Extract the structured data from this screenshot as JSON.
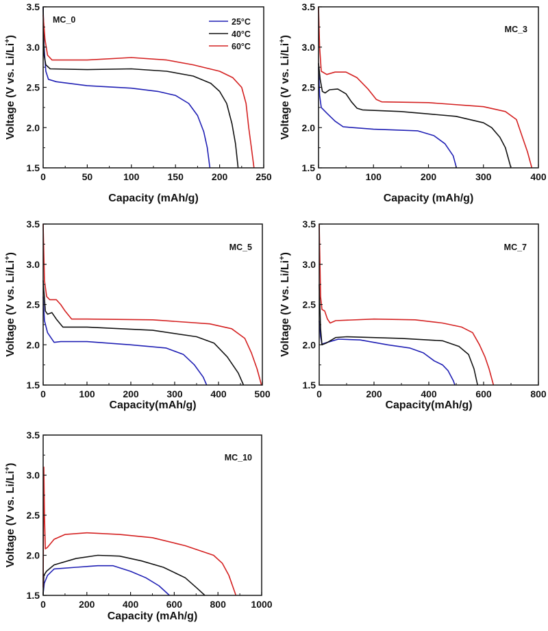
{
  "chart_data": [
    {
      "type": "line",
      "panel_label": "MC_0",
      "xlabel": "Capacity (mAh/g)",
      "ylabel": "Voltage (V vs. Li/Li+)",
      "xlim": [
        0,
        250
      ],
      "ylim": [
        1.5,
        3.5
      ],
      "x_ticks": [
        "0",
        "50",
        "100",
        "150",
        "200",
        "250"
      ],
      "y_ticks": [
        "1.5",
        "2.0",
        "2.5",
        "3.0",
        "3.5"
      ],
      "grid": false,
      "legend": {
        "placement": "top-right",
        "entries": [
          "25°C",
          "40°C",
          "60°C"
        ]
      },
      "series": [
        {
          "name": "25°C",
          "color": "#1f1fb4",
          "points": [
            [
              0,
              3.5
            ],
            [
              1,
              3.0
            ],
            [
              3,
              2.7
            ],
            [
              6,
              2.6
            ],
            [
              15,
              2.57
            ],
            [
              50,
              2.52
            ],
            [
              100,
              2.49
            ],
            [
              130,
              2.45
            ],
            [
              150,
              2.4
            ],
            [
              165,
              2.3
            ],
            [
              175,
              2.15
            ],
            [
              182,
              1.95
            ],
            [
              186,
              1.75
            ],
            [
              189,
              1.5
            ]
          ]
        },
        {
          "name": "40°C",
          "color": "#111111",
          "points": [
            [
              0,
              3.5
            ],
            [
              1,
              2.9
            ],
            [
              3,
              2.78
            ],
            [
              8,
              2.73
            ],
            [
              50,
              2.72
            ],
            [
              100,
              2.73
            ],
            [
              140,
              2.7
            ],
            [
              170,
              2.64
            ],
            [
              190,
              2.55
            ],
            [
              200,
              2.45
            ],
            [
              208,
              2.3
            ],
            [
              214,
              2.05
            ],
            [
              218,
              1.8
            ],
            [
              221,
              1.5
            ]
          ]
        },
        {
          "name": "60°C",
          "color": "#d42020",
          "points": [
            [
              0,
              3.4
            ],
            [
              2,
              3.1
            ],
            [
              5,
              2.9
            ],
            [
              10,
              2.84
            ],
            [
              50,
              2.84
            ],
            [
              100,
              2.87
            ],
            [
              140,
              2.84
            ],
            [
              170,
              2.78
            ],
            [
              200,
              2.7
            ],
            [
              215,
              2.62
            ],
            [
              225,
              2.5
            ],
            [
              230,
              2.3
            ],
            [
              233,
              2.0
            ],
            [
              236,
              1.75
            ],
            [
              239,
              1.5
            ]
          ]
        }
      ]
    },
    {
      "type": "line",
      "panel_label": "MC_3",
      "xlabel": "Capacity (mAh/g)",
      "ylabel": "Voltage (V vs. Li/Li+)",
      "xlim": [
        0,
        400
      ],
      "ylim": [
        1.5,
        3.5
      ],
      "x_ticks": [
        "0",
        "100",
        "200",
        "300",
        "400"
      ],
      "y_ticks": [
        "1.5",
        "2.0",
        "2.5",
        "3.0",
        "3.5"
      ],
      "grid": false,
      "series": [
        {
          "name": "25°C",
          "color": "#1f1fb4",
          "points": [
            [
              0,
              2.75
            ],
            [
              2,
              2.4
            ],
            [
              5,
              2.25
            ],
            [
              15,
              2.18
            ],
            [
              30,
              2.08
            ],
            [
              45,
              2.01
            ],
            [
              100,
              1.98
            ],
            [
              180,
              1.96
            ],
            [
              210,
              1.9
            ],
            [
              230,
              1.8
            ],
            [
              245,
              1.65
            ],
            [
              251,
              1.5
            ]
          ]
        },
        {
          "name": "40°C",
          "color": "#111111",
          "points": [
            [
              0,
              2.8
            ],
            [
              3,
              2.6
            ],
            [
              7,
              2.45
            ],
            [
              12,
              2.43
            ],
            [
              20,
              2.47
            ],
            [
              35,
              2.48
            ],
            [
              50,
              2.42
            ],
            [
              60,
              2.32
            ],
            [
              70,
              2.24
            ],
            [
              80,
              2.22
            ],
            [
              150,
              2.2
            ],
            [
              250,
              2.14
            ],
            [
              300,
              2.06
            ],
            [
              315,
              2.0
            ],
            [
              330,
              1.88
            ],
            [
              340,
              1.75
            ],
            [
              350,
              1.5
            ]
          ]
        },
        {
          "name": "60°C",
          "color": "#d42020",
          "points": [
            [
              0,
              3.5
            ],
            [
              2,
              3.0
            ],
            [
              5,
              2.7
            ],
            [
              15,
              2.66
            ],
            [
              30,
              2.69
            ],
            [
              50,
              2.69
            ],
            [
              70,
              2.62
            ],
            [
              90,
              2.48
            ],
            [
              105,
              2.35
            ],
            [
              115,
              2.32
            ],
            [
              200,
              2.31
            ],
            [
              300,
              2.26
            ],
            [
              340,
              2.2
            ],
            [
              360,
              2.1
            ],
            [
              370,
              1.9
            ],
            [
              380,
              1.7
            ],
            [
              388,
              1.5
            ]
          ]
        }
      ]
    },
    {
      "type": "line",
      "panel_label": "MC_5",
      "xlabel": "Capacity(mAh/g)",
      "ylabel": "Voltage (V vs. Li/Li+)",
      "xlim": [
        0,
        500
      ],
      "ylim": [
        1.5,
        3.5
      ],
      "x_ticks": [
        "0",
        "100",
        "200",
        "300",
        "400",
        "500"
      ],
      "y_ticks": [
        "1.5",
        "2.0",
        "2.5",
        "3.0",
        "3.5"
      ],
      "grid": false,
      "series": [
        {
          "name": "25°C",
          "color": "#1f1fb4",
          "points": [
            [
              0,
              2.6
            ],
            [
              3,
              2.3
            ],
            [
              10,
              2.15
            ],
            [
              25,
              2.03
            ],
            [
              40,
              2.04
            ],
            [
              100,
              2.04
            ],
            [
              200,
              2.0
            ],
            [
              280,
              1.96
            ],
            [
              320,
              1.88
            ],
            [
              345,
              1.75
            ],
            [
              365,
              1.6
            ],
            [
              373,
              1.5
            ]
          ]
        },
        {
          "name": "40°C",
          "color": "#111111",
          "points": [
            [
              0,
              2.8
            ],
            [
              5,
              2.42
            ],
            [
              10,
              2.38
            ],
            [
              20,
              2.4
            ],
            [
              30,
              2.32
            ],
            [
              45,
              2.22
            ],
            [
              100,
              2.22
            ],
            [
              250,
              2.18
            ],
            [
              350,
              2.1
            ],
            [
              390,
              2.02
            ],
            [
              420,
              1.85
            ],
            [
              445,
              1.65
            ],
            [
              457,
              1.5
            ]
          ]
        },
        {
          "name": "60°C",
          "color": "#d42020",
          "points": [
            [
              0,
              3.5
            ],
            [
              3,
              2.8
            ],
            [
              8,
              2.6
            ],
            [
              15,
              2.56
            ],
            [
              30,
              2.56
            ],
            [
              40,
              2.5
            ],
            [
              50,
              2.42
            ],
            [
              65,
              2.32
            ],
            [
              100,
              2.32
            ],
            [
              250,
              2.31
            ],
            [
              380,
              2.26
            ],
            [
              430,
              2.2
            ],
            [
              460,
              2.08
            ],
            [
              475,
              1.9
            ],
            [
              488,
              1.7
            ],
            [
              498,
              1.5
            ]
          ]
        }
      ]
    },
    {
      "type": "line",
      "panel_label": "MC_7",
      "xlabel": "Capacity(mAh/g)",
      "ylabel": "Voltage (V vs. Li/Li+)",
      "xlim": [
        0,
        800
      ],
      "ylim": [
        1.5,
        3.5
      ],
      "x_ticks": [
        "0",
        "200",
        "400",
        "600",
        "800"
      ],
      "y_ticks": [
        "1.5",
        "2.0",
        "2.5",
        "3.0",
        "3.5"
      ],
      "grid": false,
      "series": [
        {
          "name": "25°C",
          "color": "#1f1fb4",
          "points": [
            [
              0,
              2.3
            ],
            [
              5,
              2.1
            ],
            [
              10,
              2.01
            ],
            [
              30,
              2.03
            ],
            [
              70,
              2.07
            ],
            [
              150,
              2.06
            ],
            [
              250,
              2.0
            ],
            [
              330,
              1.96
            ],
            [
              380,
              1.9
            ],
            [
              420,
              1.8
            ],
            [
              450,
              1.75
            ],
            [
              470,
              1.68
            ],
            [
              490,
              1.55
            ],
            [
              495,
              1.5
            ]
          ]
        },
        {
          "name": "40°C",
          "color": "#111111",
          "points": [
            [
              0,
              2.75
            ],
            [
              5,
              2.2
            ],
            [
              10,
              2.0
            ],
            [
              25,
              2.02
            ],
            [
              60,
              2.09
            ],
            [
              100,
              2.1
            ],
            [
              300,
              2.08
            ],
            [
              450,
              2.05
            ],
            [
              510,
              1.98
            ],
            [
              545,
              1.88
            ],
            [
              565,
              1.7
            ],
            [
              578,
              1.5
            ]
          ]
        },
        {
          "name": "60°C",
          "color": "#d42020",
          "points": [
            [
              0,
              3.5
            ],
            [
              5,
              2.6
            ],
            [
              10,
              2.44
            ],
            [
              20,
              2.42
            ],
            [
              30,
              2.32
            ],
            [
              40,
              2.27
            ],
            [
              60,
              2.3
            ],
            [
              200,
              2.32
            ],
            [
              350,
              2.31
            ],
            [
              450,
              2.27
            ],
            [
              520,
              2.22
            ],
            [
              560,
              2.15
            ],
            [
              585,
              2.0
            ],
            [
              605,
              1.85
            ],
            [
              620,
              1.7
            ],
            [
              636,
              1.5
            ]
          ]
        }
      ]
    },
    {
      "type": "line",
      "panel_label": "MC_10",
      "xlabel": "Capacity (mAh/g)",
      "ylabel": "Voltage (V vs. Li/Li+)",
      "xlim": [
        0,
        1000
      ],
      "ylim": [
        1.5,
        3.5
      ],
      "x_ticks": [
        "0",
        "200",
        "400",
        "600",
        "800",
        "1000"
      ],
      "y_ticks": [
        "1.5",
        "2.0",
        "2.5",
        "3.0",
        "3.5"
      ],
      "grid": false,
      "series": [
        {
          "name": "25°C",
          "color": "#1f1fb4",
          "points": [
            [
              0,
              1.52
            ],
            [
              5,
              1.65
            ],
            [
              20,
              1.75
            ],
            [
              50,
              1.83
            ],
            [
              150,
              1.85
            ],
            [
              250,
              1.87
            ],
            [
              320,
              1.87
            ],
            [
              400,
              1.8
            ],
            [
              470,
              1.72
            ],
            [
              530,
              1.62
            ],
            [
              578,
              1.5
            ]
          ]
        },
        {
          "name": "40°C",
          "color": "#111111",
          "points": [
            [
              0,
              1.5
            ],
            [
              3,
              1.75
            ],
            [
              15,
              1.8
            ],
            [
              50,
              1.88
            ],
            [
              150,
              1.96
            ],
            [
              250,
              2.0
            ],
            [
              350,
              1.99
            ],
            [
              450,
              1.93
            ],
            [
              550,
              1.85
            ],
            [
              650,
              1.72
            ],
            [
              700,
              1.6
            ],
            [
              740,
              1.5
            ]
          ]
        },
        {
          "name": "60°C",
          "color": "#d42020",
          "points": [
            [
              0,
              1.6
            ],
            [
              3,
              3.1
            ],
            [
              6,
              2.5
            ],
            [
              10,
              2.08
            ],
            [
              20,
              2.1
            ],
            [
              50,
              2.2
            ],
            [
              100,
              2.26
            ],
            [
              200,
              2.28
            ],
            [
              350,
              2.26
            ],
            [
              500,
              2.22
            ],
            [
              650,
              2.12
            ],
            [
              780,
              2.0
            ],
            [
              820,
              1.9
            ],
            [
              850,
              1.75
            ],
            [
              882,
              1.5
            ]
          ]
        }
      ]
    }
  ]
}
